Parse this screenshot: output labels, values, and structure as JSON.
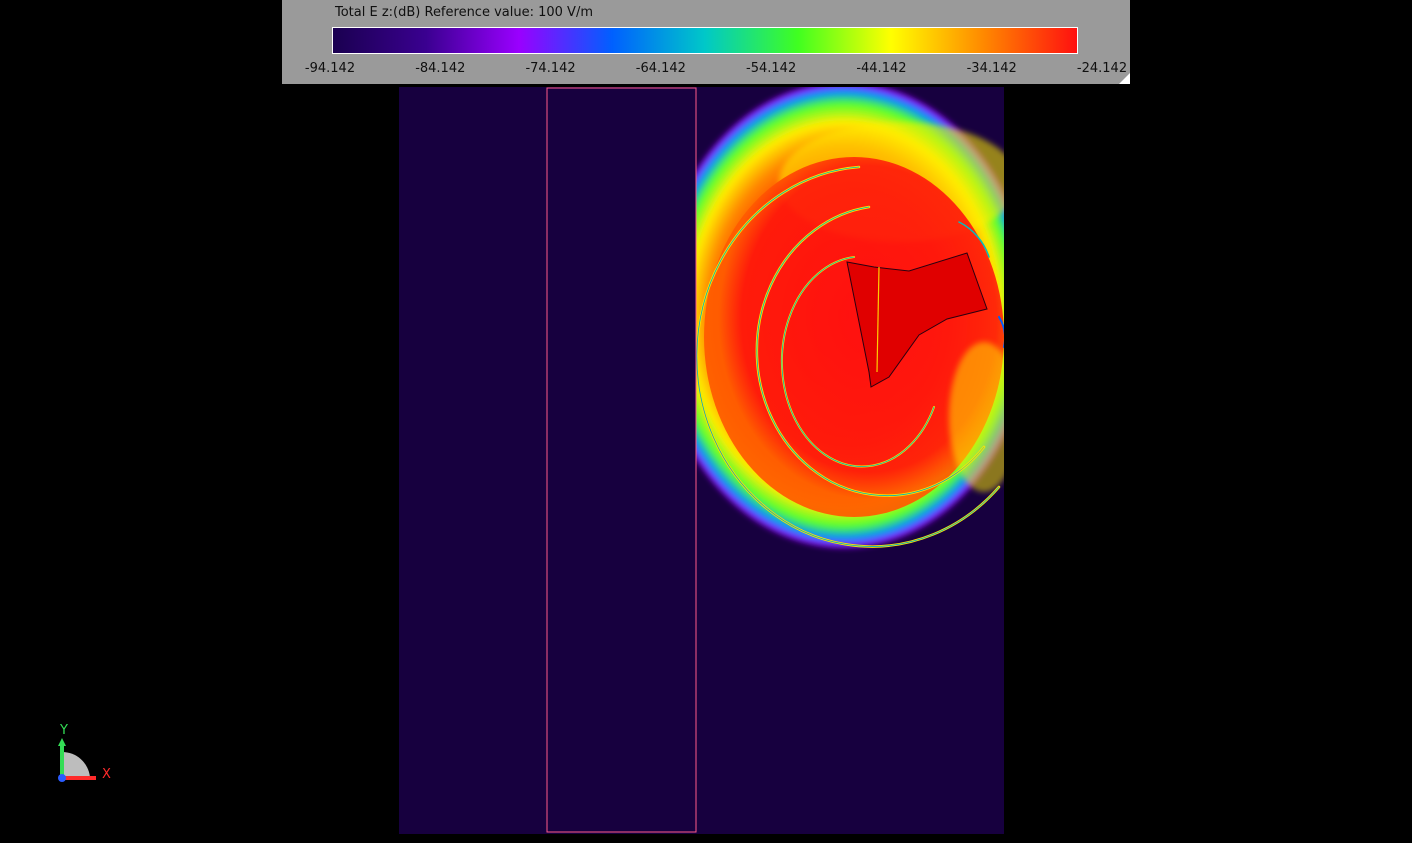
{
  "legend": {
    "title": "Total E z:(dB) Reference value: 100 V/m",
    "ticks": [
      "-94.142",
      "-84.142",
      "-74.142",
      "-64.142",
      "-54.142",
      "-44.142",
      "-34.142",
      "-24.142"
    ],
    "colormap": [
      "#1a0050",
      "#3a0090",
      "#9a00ff",
      "#0060ff",
      "#00c8c8",
      "#40ff20",
      "#ffff00",
      "#ff8800",
      "#ff1010"
    ]
  },
  "plot": {
    "background_color": "#17003f",
    "outline_color": "#ff5a8a"
  },
  "axes": {
    "x_label": "X",
    "y_label": "Y",
    "x_color": "#ff2a2a",
    "y_color": "#33dd55",
    "z_color": "#2a5cff"
  }
}
